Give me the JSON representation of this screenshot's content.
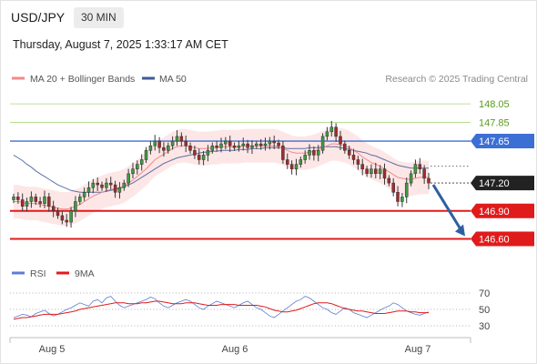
{
  "header": {
    "symbol": "USD/JPY",
    "timeframe": "30 MIN",
    "timestamp": "Thursday, August 7, 2025 1:33:17 AM CET"
  },
  "legend": {
    "items": [
      {
        "label": "MA 20 + Bollinger Bands",
        "color": "#f08a8a"
      },
      {
        "label": "MA 50",
        "color": "#3e5a96"
      }
    ],
    "copyright": "Research © 2025 Trading Central"
  },
  "rsi_legend": {
    "items": [
      {
        "label": "RSI",
        "color": "#5b7fd3"
      },
      {
        "label": "9MA",
        "color": "#e01b1b"
      }
    ]
  },
  "chart_data": [
    {
      "type": "candlestick",
      "title": "USD/JPY",
      "timeframe": "30 MIN",
      "y_range": [
        146.55,
        148.1
      ],
      "x_ticks": [
        "Aug 5",
        "Aug 6",
        "Aug 7"
      ],
      "price_levels": [
        {
          "label": "148.05",
          "value": 148.05,
          "color": "#8bc34a",
          "style": "thin"
        },
        {
          "label": "147.85",
          "value": 147.85,
          "color": "#8bc34a",
          "style": "thin"
        },
        {
          "label": "147.65",
          "value": 147.65,
          "color": "#3b6fd4",
          "style": "resistance"
        },
        {
          "label": "147.20",
          "value": 147.2,
          "color": "#222222",
          "style": "current"
        },
        {
          "label": "146.90",
          "value": 146.9,
          "color": "#e01b1b",
          "style": "support"
        },
        {
          "label": "146.60",
          "value": 146.6,
          "color": "#e01b1b",
          "style": "support"
        }
      ],
      "close_series": [
        147.05,
        147.02,
        146.95,
        147.0,
        147.05,
        147.0,
        146.98,
        147.05,
        146.95,
        146.9,
        146.85,
        146.8,
        146.78,
        146.9,
        147.0,
        147.05,
        147.1,
        147.15,
        147.2,
        147.18,
        147.15,
        147.2,
        147.18,
        147.1,
        147.15,
        147.2,
        147.3,
        147.35,
        147.4,
        147.45,
        147.55,
        147.6,
        147.65,
        147.58,
        147.55,
        147.6,
        147.65,
        147.7,
        147.65,
        147.6,
        147.55,
        147.5,
        147.45,
        147.5,
        147.55,
        147.6,
        147.58,
        147.62,
        147.65,
        147.6,
        147.58,
        147.6,
        147.62,
        147.58,
        147.6,
        147.62,
        147.6,
        147.62,
        147.65,
        147.63,
        147.6,
        147.45,
        147.4,
        147.35,
        147.4,
        147.45,
        147.5,
        147.55,
        147.5,
        147.55,
        147.7,
        147.75,
        147.8,
        147.7,
        147.62,
        147.55,
        147.5,
        147.45,
        147.4,
        147.35,
        147.3,
        147.35,
        147.3,
        147.35,
        147.25,
        147.2,
        147.1,
        147.0,
        147.05,
        147.2,
        147.3,
        147.4,
        147.35,
        147.25,
        147.2
      ],
      "ma20_series": [
        147.0,
        147.0,
        146.99,
        146.98,
        146.98,
        146.98,
        146.97,
        146.96,
        146.95,
        146.94,
        146.93,
        146.92,
        146.92,
        146.93,
        146.95,
        146.97,
        147.0,
        147.03,
        147.06,
        147.08,
        147.1,
        147.12,
        147.13,
        147.14,
        147.15,
        147.17,
        147.2,
        147.23,
        147.27,
        147.31,
        147.35,
        147.4,
        147.45,
        147.48,
        147.51,
        147.54,
        147.57,
        147.59,
        147.6,
        147.6,
        147.59,
        147.58,
        147.57,
        147.57,
        147.57,
        147.58,
        147.58,
        147.59,
        147.59,
        147.59,
        147.59,
        147.59,
        147.6,
        147.6,
        147.6,
        147.6,
        147.6,
        147.6,
        147.6,
        147.6,
        147.59,
        147.57,
        147.55,
        147.53,
        147.52,
        147.52,
        147.52,
        147.53,
        147.54,
        147.56,
        147.58,
        147.6,
        147.62,
        147.62,
        147.61,
        147.6,
        147.58,
        147.55,
        147.52,
        147.48,
        147.45,
        147.42,
        147.4,
        147.38,
        147.35,
        147.32,
        147.29,
        147.26,
        147.25,
        147.24,
        147.24,
        147.25,
        147.26,
        147.26,
        147.26
      ],
      "ma50_series": [
        147.5,
        147.47,
        147.44,
        147.4,
        147.37,
        147.33,
        147.3,
        147.27,
        147.24,
        147.21,
        147.18,
        147.16,
        147.14,
        147.12,
        147.11,
        147.1,
        147.1,
        147.1,
        147.1,
        147.1,
        147.1,
        147.11,
        147.12,
        147.13,
        147.14,
        147.16,
        147.18,
        147.2,
        147.23,
        147.26,
        147.29,
        147.32,
        147.35,
        147.38,
        147.41,
        147.43,
        147.45,
        147.47,
        147.48,
        147.49,
        147.5,
        147.51,
        147.52,
        147.53,
        147.53,
        147.54,
        147.54,
        147.55,
        147.55,
        147.55,
        147.55,
        147.56,
        147.56,
        147.56,
        147.57,
        147.57,
        147.57,
        147.58,
        147.58,
        147.58,
        147.58,
        147.58,
        147.57,
        147.57,
        147.57,
        147.57,
        147.57,
        147.58,
        147.58,
        147.58,
        147.59,
        147.59,
        147.59,
        147.59,
        147.58,
        147.57,
        147.56,
        147.55,
        147.54,
        147.53,
        147.52,
        147.5,
        147.49,
        147.47,
        147.45,
        147.43,
        147.41,
        147.39,
        147.38,
        147.37,
        147.36,
        147.36,
        147.36,
        147.36,
        147.36
      ],
      "bb_width": 0.18,
      "arrow": {
        "from": 147.2,
        "to": 146.6
      }
    },
    {
      "type": "line",
      "title": "RSI",
      "y_range": [
        20,
        80
      ],
      "y_ticks": [
        70,
        50,
        30
      ],
      "series": [
        {
          "name": "RSI",
          "values": [
            40,
            42,
            44,
            43,
            41,
            45,
            47,
            49,
            45,
            42,
            44,
            47,
            50,
            52,
            55,
            58,
            56,
            54,
            60,
            62,
            58,
            64,
            66,
            60,
            55,
            52,
            54,
            56,
            58,
            60,
            62,
            65,
            63,
            58,
            54,
            52,
            55,
            58,
            60,
            62,
            60,
            56,
            52,
            50,
            54,
            57,
            60,
            58,
            56,
            54,
            52,
            55,
            58,
            60,
            56,
            52,
            50,
            46,
            42,
            40,
            44,
            48,
            52,
            56,
            60,
            62,
            66,
            64,
            60,
            56,
            52,
            50,
            46,
            44,
            48,
            52,
            50,
            46,
            44,
            42,
            40,
            43,
            46,
            49,
            52,
            54,
            58,
            56,
            52,
            48,
            46,
            44,
            43,
            45,
            47
          ]
        },
        {
          "name": "9MA",
          "values": [
            38,
            39,
            40,
            40,
            41,
            42,
            43,
            44,
            44,
            44,
            44,
            45,
            46,
            47,
            48,
            50,
            51,
            52,
            53,
            54,
            55,
            56,
            57,
            58,
            58,
            58,
            57,
            57,
            57,
            58,
            58,
            59,
            60,
            60,
            59,
            58,
            57,
            57,
            57,
            58,
            58,
            58,
            57,
            56,
            55,
            55,
            55,
            56,
            56,
            56,
            56,
            55,
            55,
            55,
            55,
            55,
            54,
            53,
            51,
            49,
            48,
            47,
            47,
            48,
            49,
            51,
            53,
            55,
            57,
            58,
            58,
            58,
            57,
            55,
            53,
            51,
            50,
            49,
            48,
            48,
            47,
            46,
            45,
            45,
            45,
            46,
            47,
            48,
            48,
            48,
            47,
            47,
            46,
            46,
            46
          ]
        }
      ]
    }
  ]
}
